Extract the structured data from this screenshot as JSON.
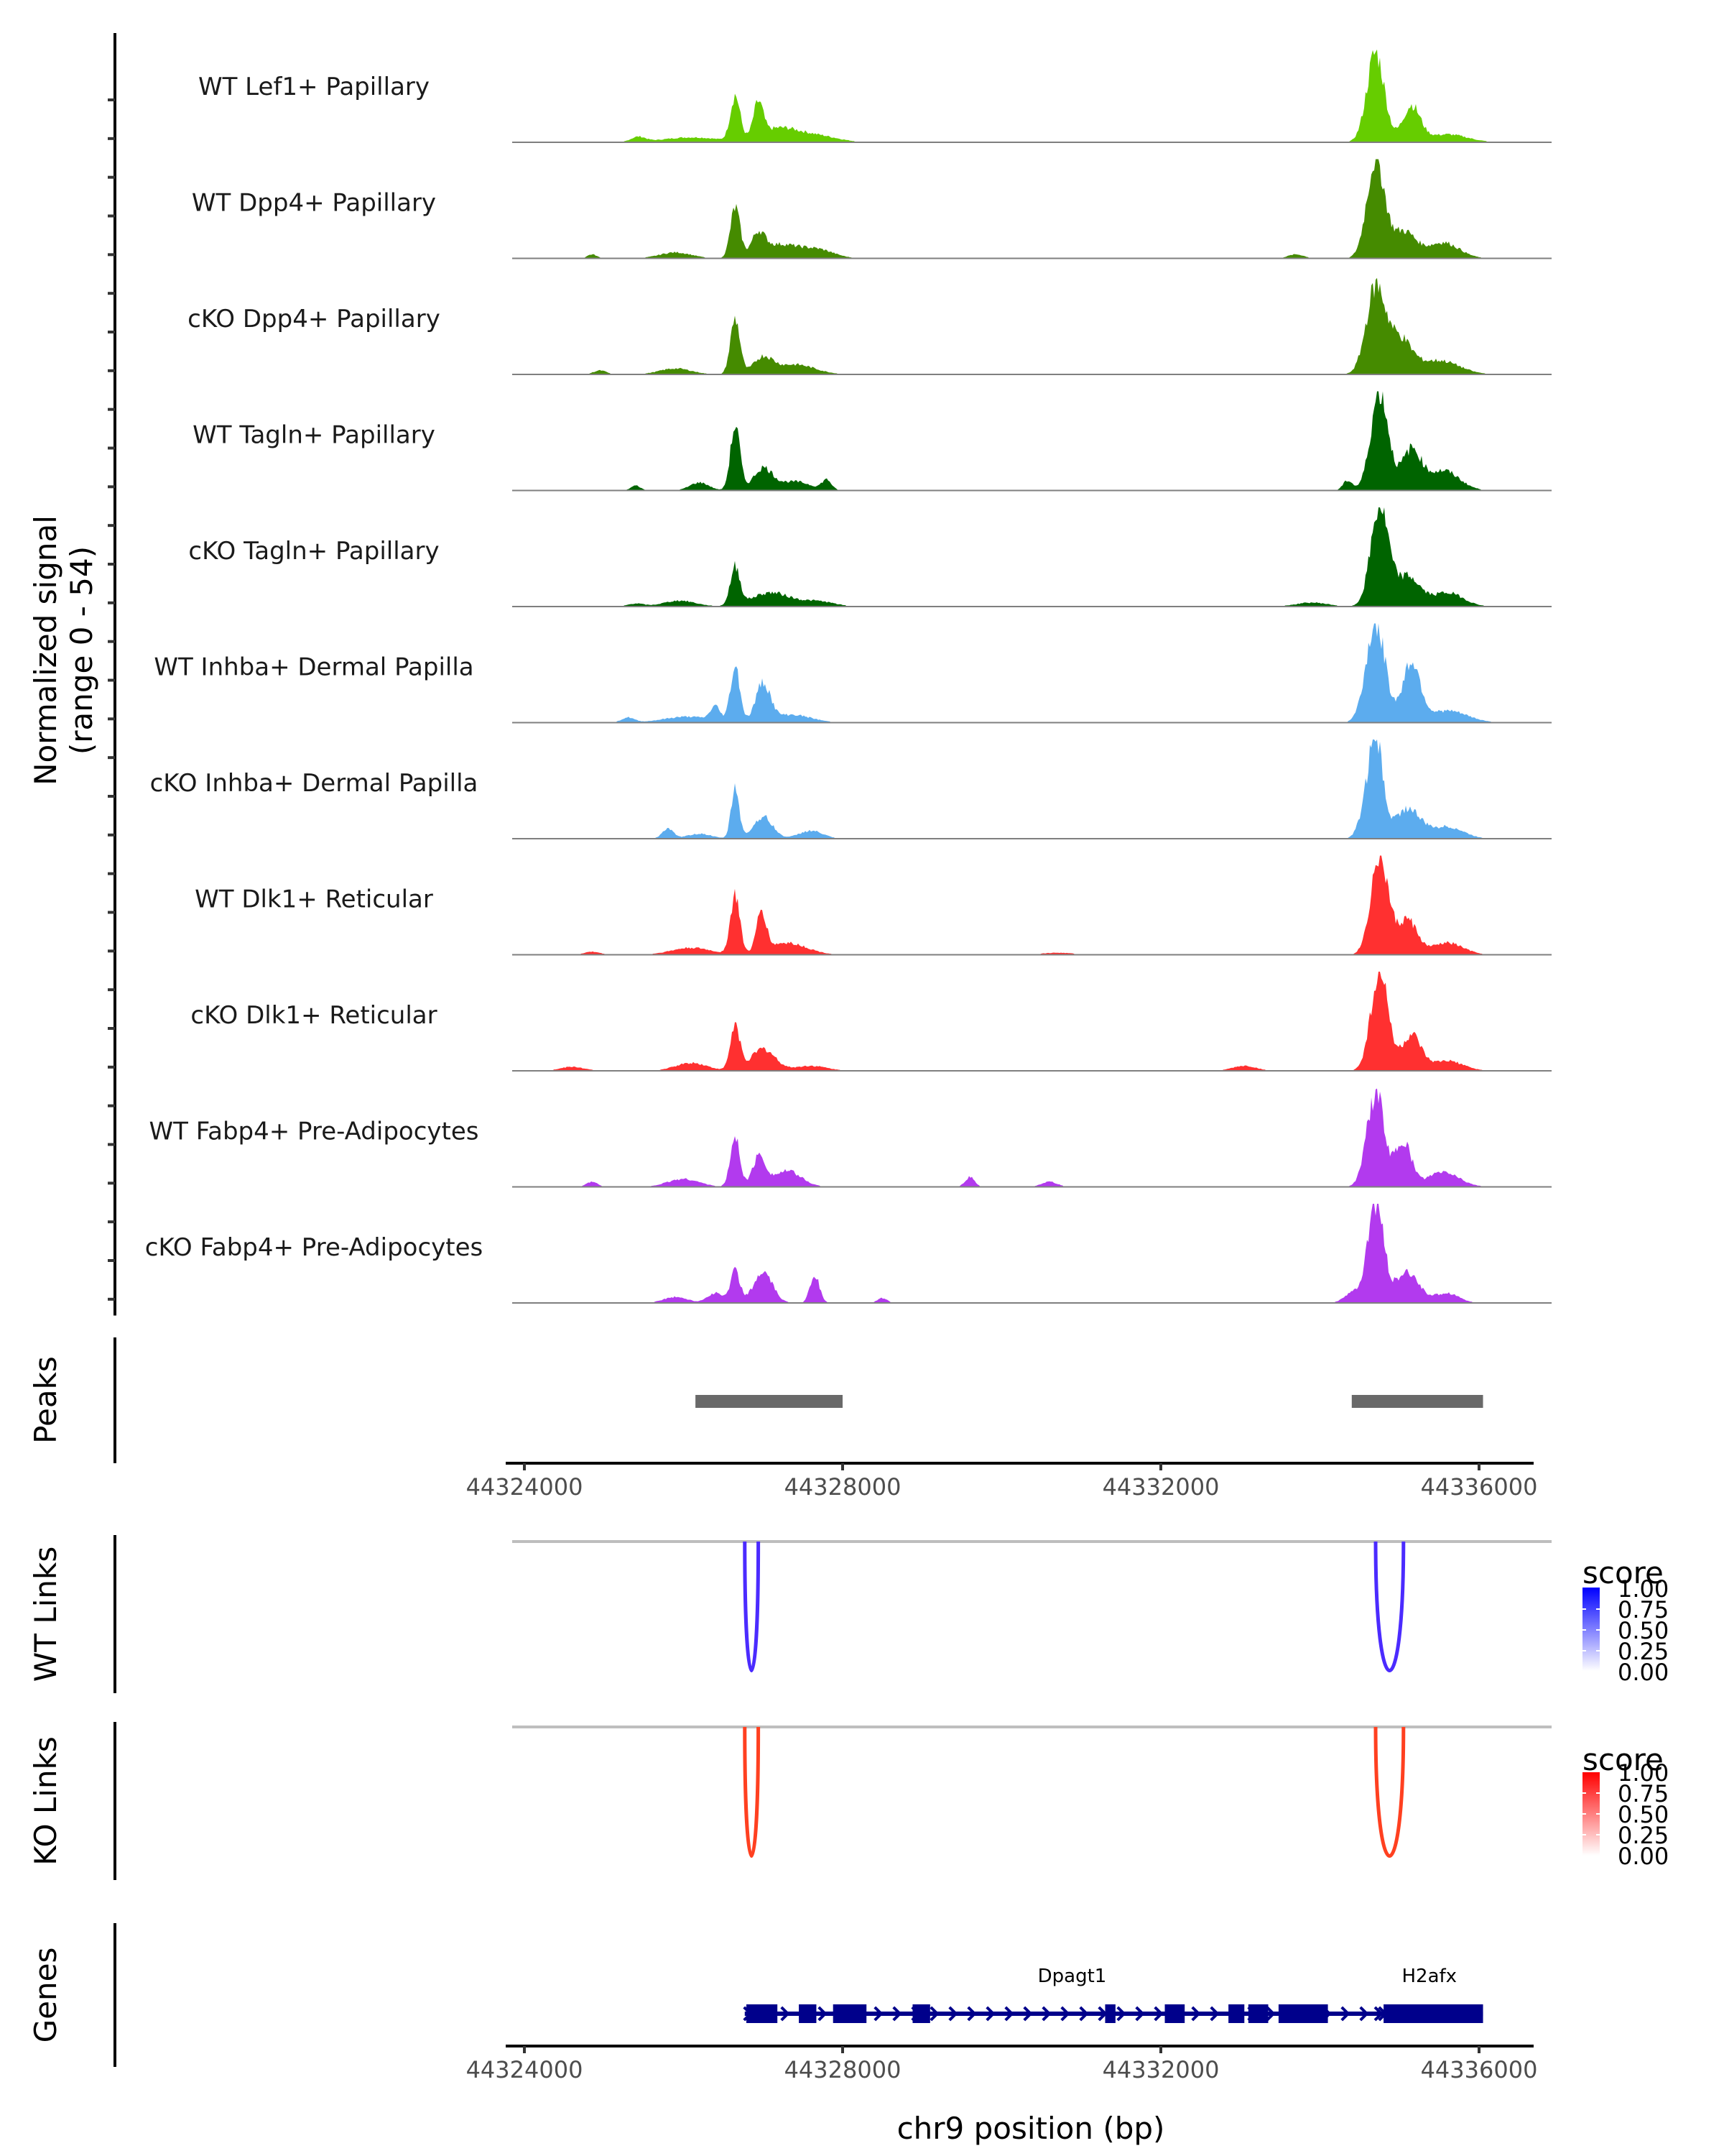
{
  "chart_data": {
    "type": "area",
    "title": "",
    "xlabel": "chr9 position (bp)",
    "ylabel": "Normalized signal",
    "ylabel_sub": "(range 0 - 54)",
    "y_range": [
      0,
      54
    ],
    "x_range": [
      44323850,
      44336300
    ],
    "x_ticks": [
      44324000,
      44328000,
      44332000,
      44336000
    ],
    "x_tick_labels": [
      "44324000",
      "44328000",
      "44332000",
      "44336000"
    ],
    "coverage_tracks": [
      {
        "name": "WT Lef1+ Papillary",
        "color": "#66cd00",
        "peaks": [
          [
            44325430,
            0.05,
            90
          ],
          [
            44326100,
            0.05,
            350
          ],
          [
            44326650,
            0.45,
            60
          ],
          [
            44326940,
            0.33,
            60
          ],
          [
            44327200,
            0.14,
            250
          ],
          [
            44327700,
            0.06,
            250
          ],
          [
            44334700,
            0.9,
            110
          ],
          [
            44335150,
            0.36,
            110
          ],
          [
            44335600,
            0.08,
            250
          ]
        ]
      },
      {
        "name": "WT Dpp4+ Papillary",
        "color": "#458b00",
        "peaks": [
          [
            44324850,
            0.04,
            60
          ],
          [
            44325900,
            0.06,
            200
          ],
          [
            44326650,
            0.5,
            60
          ],
          [
            44326940,
            0.2,
            80
          ],
          [
            44327200,
            0.14,
            250
          ],
          [
            44327700,
            0.08,
            200
          ],
          [
            44333700,
            0.04,
            100
          ],
          [
            44334700,
            1.0,
            110
          ],
          [
            44335050,
            0.27,
            150
          ],
          [
            44335550,
            0.16,
            200
          ]
        ]
      },
      {
        "name": "cKO Dpp4+ Papillary",
        "color": "#458b00",
        "peaks": [
          [
            44324950,
            0.04,
            80
          ],
          [
            44325900,
            0.06,
            200
          ],
          [
            44326650,
            0.56,
            60
          ],
          [
            44327000,
            0.16,
            120
          ],
          [
            44327400,
            0.1,
            250
          ],
          [
            44334700,
            0.85,
            120
          ],
          [
            44335000,
            0.35,
            150
          ],
          [
            44335500,
            0.14,
            250
          ]
        ]
      },
      {
        "name": "WT Tagln+ Papillary",
        "color": "#006400",
        "peaks": [
          [
            44325400,
            0.05,
            60
          ],
          [
            44326200,
            0.08,
            120
          ],
          [
            44326650,
            0.65,
            60
          ],
          [
            44327000,
            0.22,
            120
          ],
          [
            44327400,
            0.09,
            200
          ],
          [
            44327800,
            0.1,
            60
          ],
          [
            44334350,
            0.1,
            60
          ],
          [
            44334750,
            1.0,
            110
          ],
          [
            44335150,
            0.4,
            120
          ],
          [
            44335550,
            0.2,
            200
          ]
        ]
      },
      {
        "name": "cKO Tagln+ Papillary",
        "color": "#006400",
        "peaks": [
          [
            44325400,
            0.03,
            100
          ],
          [
            44325950,
            0.06,
            200
          ],
          [
            44326650,
            0.38,
            60
          ],
          [
            44327100,
            0.14,
            250
          ],
          [
            44327700,
            0.05,
            200
          ],
          [
            44333900,
            0.04,
            200
          ],
          [
            44334750,
            1.0,
            110
          ],
          [
            44335100,
            0.3,
            150
          ],
          [
            44335600,
            0.14,
            200
          ]
        ]
      },
      {
        "name": "WT Inhba+ Dermal Papilla",
        "color": "#5cacee",
        "peaks": [
          [
            44325300,
            0.05,
            80
          ],
          [
            44326050,
            0.06,
            300
          ],
          [
            44326400,
            0.14,
            60
          ],
          [
            44326650,
            0.56,
            60
          ],
          [
            44327000,
            0.38,
            90
          ],
          [
            44327350,
            0.08,
            250
          ],
          [
            44334700,
            1.0,
            120
          ],
          [
            44335150,
            0.6,
            110
          ],
          [
            44335600,
            0.12,
            250
          ]
        ]
      },
      {
        "name": "cKO Inhba+ Dermal Papilla",
        "color": "#5cacee",
        "peaks": [
          [
            44325800,
            0.1,
            70
          ],
          [
            44326200,
            0.05,
            150
          ],
          [
            44326650,
            0.52,
            50
          ],
          [
            44327000,
            0.22,
            120
          ],
          [
            44327600,
            0.08,
            150
          ],
          [
            44334550,
            0.18,
            80
          ],
          [
            44334700,
            1.0,
            90
          ],
          [
            44335100,
            0.3,
            160
          ],
          [
            44335600,
            0.12,
            200
          ]
        ]
      },
      {
        "name": "WT Dlk1+ Reticular",
        "color": "#ff3030",
        "peaks": [
          [
            44324850,
            0.03,
            100
          ],
          [
            44326100,
            0.07,
            250
          ],
          [
            44326650,
            0.58,
            60
          ],
          [
            44326980,
            0.4,
            60
          ],
          [
            44327300,
            0.12,
            250
          ],
          [
            44330700,
            0.02,
            200
          ],
          [
            44334750,
            1.0,
            110
          ],
          [
            44335100,
            0.35,
            120
          ],
          [
            44335600,
            0.12,
            200
          ]
        ]
      },
      {
        "name": "cKO Dlk1+ Reticular",
        "color": "#ff3030",
        "peaks": [
          [
            44324600,
            0.04,
            150
          ],
          [
            44326100,
            0.08,
            200
          ],
          [
            44326650,
            0.45,
            60
          ],
          [
            44327000,
            0.22,
            150
          ],
          [
            44327600,
            0.05,
            200
          ],
          [
            44333050,
            0.05,
            150
          ],
          [
            44334750,
            1.0,
            110
          ],
          [
            44335150,
            0.35,
            120
          ],
          [
            44335600,
            0.1,
            200
          ]
        ]
      },
      {
        "name": "WT Fabp4+ Pre-Adipocytes",
        "color": "#b23aee",
        "peaks": [
          [
            44324850,
            0.05,
            70
          ],
          [
            44326000,
            0.08,
            200
          ],
          [
            44326650,
            0.5,
            60
          ],
          [
            44326950,
            0.3,
            80
          ],
          [
            44327300,
            0.16,
            180
          ],
          [
            44329600,
            0.1,
            60
          ],
          [
            44330600,
            0.05,
            100
          ],
          [
            44334700,
            0.95,
            110
          ],
          [
            44335050,
            0.45,
            100
          ],
          [
            44335550,
            0.15,
            200
          ]
        ]
      },
      {
        "name": "cKO Fabp4+ Pre-Adipocytes",
        "color": "#b23aee",
        "peaks": [
          [
            44325900,
            0.06,
            150
          ],
          [
            44326400,
            0.1,
            100
          ],
          [
            44326650,
            0.32,
            60
          ],
          [
            44327000,
            0.3,
            120
          ],
          [
            44327650,
            0.28,
            60
          ],
          [
            44328500,
            0.05,
            60
          ],
          [
            44334400,
            0.1,
            100
          ],
          [
            44334700,
            1.0,
            100
          ],
          [
            44335100,
            0.3,
            150
          ],
          [
            44335600,
            0.1,
            150
          ]
        ]
      }
    ],
    "peaks_track": {
      "label": "Peaks",
      "color": "#696969",
      "regions": [
        [
          44326150,
          44328000
        ],
        [
          44334400,
          44336050
        ]
      ]
    },
    "links_tracks": [
      {
        "label": "WT Links",
        "color": "#4b2bff",
        "legend_color_high": "#0000ff",
        "links": [
          [
            44326770,
            44326940,
            1.0
          ],
          [
            44334700,
            44335050,
            1.0
          ]
        ]
      },
      {
        "label": "KO Links",
        "color": "#ff4020",
        "legend_color_high": "#ff0000",
        "links": [
          [
            44326770,
            44326940,
            1.0
          ],
          [
            44334700,
            44335050,
            1.0
          ]
        ]
      }
    ],
    "legend": {
      "title": "score",
      "labels": [
        "1.00",
        "0.75",
        "0.50",
        "0.25",
        "0.00"
      ],
      "range": [
        0,
        1
      ]
    },
    "genes_track": {
      "label": "Genes",
      "color": "#00008b",
      "genes": [
        {
          "name": "Dpagt1",
          "start": 44326770,
          "end": 44335000,
          "strand": "+",
          "exons": [
            [
              44326790,
              44327180
            ],
            [
              44327450,
              44327670
            ],
            [
              44327880,
              44328300
            ],
            [
              44328880,
              44329100
            ],
            [
              44331300,
              44331430
            ],
            [
              44332050,
              44332300
            ],
            [
              44332850,
              44333050
            ],
            [
              44333100,
              44333350
            ],
            [
              44333480,
              44334100
            ]
          ]
        },
        {
          "name": "H2afx",
          "start": 44334700,
          "end": 44336050,
          "strand": "+",
          "exons": [
            [
              44334800,
              44336050
            ]
          ]
        }
      ]
    },
    "grid": false
  }
}
